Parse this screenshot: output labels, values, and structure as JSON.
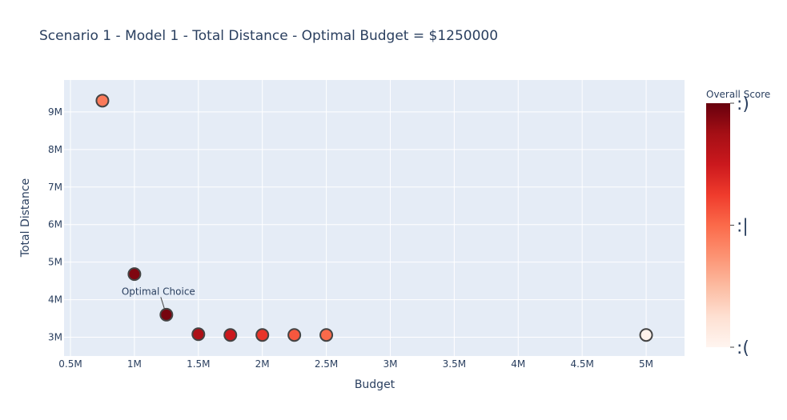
{
  "chart_data": {
    "type": "scatter",
    "title": "Scenario 1 - Model 1 - Total Distance - Optimal Budget = $1250000",
    "xlabel": "Budget",
    "ylabel": "Total Distance",
    "xlim": [
      450000,
      5300000
    ],
    "ylim": [
      2500000,
      9850000
    ],
    "x_ticks": [
      500000,
      1000000,
      1500000,
      2000000,
      2500000,
      3000000,
      3500000,
      4000000,
      4500000,
      5000000
    ],
    "x_tick_labels": [
      "0.5M",
      "1M",
      "1.5M",
      "2M",
      "2.5M",
      "3M",
      "3.5M",
      "4M",
      "4.5M",
      "5M"
    ],
    "y_ticks": [
      3000000,
      4000000,
      5000000,
      6000000,
      7000000,
      8000000,
      9000000
    ],
    "y_tick_labels": [
      "3M",
      "4M",
      "5M",
      "6M",
      "7M",
      "8M",
      "9M"
    ],
    "grid": true,
    "points": [
      {
        "x": 750000,
        "y": 9300000,
        "score": 0.45
      },
      {
        "x": 1000000,
        "y": 4680000,
        "score": 0.95
      },
      {
        "x": 1250000,
        "y": 3600000,
        "score": 0.97
      },
      {
        "x": 1500000,
        "y": 3080000,
        "score": 0.85
      },
      {
        "x": 1750000,
        "y": 3060000,
        "score": 0.75
      },
      {
        "x": 2000000,
        "y": 3060000,
        "score": 0.65
      },
      {
        "x": 2250000,
        "y": 3060000,
        "score": 0.55
      },
      {
        "x": 2500000,
        "y": 3060000,
        "score": 0.5
      },
      {
        "x": 5000000,
        "y": 3060000,
        "score": 0.02
      }
    ],
    "annotation": {
      "text": "Optimal Choice",
      "x": 1250000,
      "y": 3600000
    },
    "colorbar": {
      "title": "Overall Score",
      "tick_labels": [
        ":)",
        ":|",
        ":("
      ],
      "tick_values": [
        1,
        0.5,
        0
      ],
      "colorscale": [
        "#fff5f0",
        "#fee0d2",
        "#fcbba1",
        "#fc9272",
        "#fb6a4a",
        "#ef3b2c",
        "#cb181d",
        "#a50f15",
        "#67000d"
      ]
    }
  },
  "colors": {
    "plot_bg": "#e5ecf6",
    "grid": "#ffffff",
    "text": "#2a3f5f",
    "marker_line": "#444444"
  }
}
